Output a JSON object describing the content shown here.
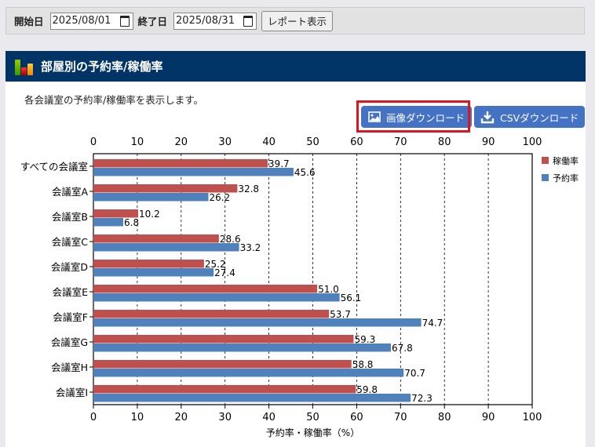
{
  "filter": {
    "start_label": "開始日",
    "start_value": "2025/08/01",
    "end_label": "終了日",
    "end_value": "2025/08/31",
    "report_button": "レポート表示"
  },
  "panel": {
    "title": "部屋別の予約率/稼働率",
    "description": "各会議室の予約率/稼働率を表示します。",
    "image_download": "画像ダウンロード",
    "csv_download": "CSVダウンロード"
  },
  "colors": {
    "header": "#003366",
    "occupancy": "#c0504d",
    "reservation": "#4f81bd",
    "button": "#4472c4",
    "highlight": "#e0141e"
  },
  "chart_data": {
    "type": "bar",
    "orientation": "horizontal",
    "categories": [
      "すべての会議室",
      "会議室A",
      "会議室B",
      "会議室C",
      "会議室D",
      "会議室E",
      "会議室F",
      "会議室G",
      "会議室H",
      "会議室I"
    ],
    "series": [
      {
        "name": "稼働率",
        "values": [
          39.7,
          32.8,
          10.2,
          28.6,
          25.2,
          51.0,
          53.7,
          59.3,
          58.8,
          59.8
        ]
      },
      {
        "name": "予約率",
        "values": [
          45.6,
          26.2,
          6.8,
          33.2,
          27.4,
          56.1,
          74.7,
          67.8,
          70.7,
          72.3
        ]
      }
    ],
    "xlabel": "予約率・稼働率（%）",
    "xlim": [
      0,
      100
    ],
    "xticks": [
      0,
      10,
      20,
      30,
      40,
      50,
      60,
      70,
      80,
      90,
      100
    ],
    "grid": "vertical dashed",
    "legend": "right"
  }
}
